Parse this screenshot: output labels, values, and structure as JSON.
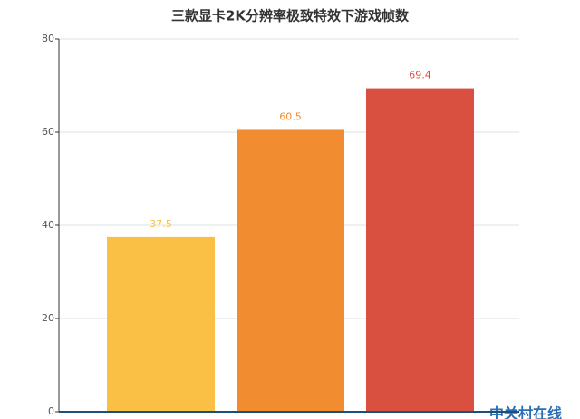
{
  "chart_data": {
    "type": "bar",
    "title": "三款显卡2K分辨率极致特效下游戏帧数",
    "categories": [
      null,
      null,
      null
    ],
    "values": [
      37.5,
      60.5,
      69.4
    ],
    "colors": [
      "#fabf45",
      "#f28c30",
      "#d94f40"
    ],
    "ylim": [
      0,
      80
    ],
    "yticks": [
      0,
      20,
      40,
      60,
      80
    ],
    "grid": true,
    "watermark": "中关村在线"
  }
}
